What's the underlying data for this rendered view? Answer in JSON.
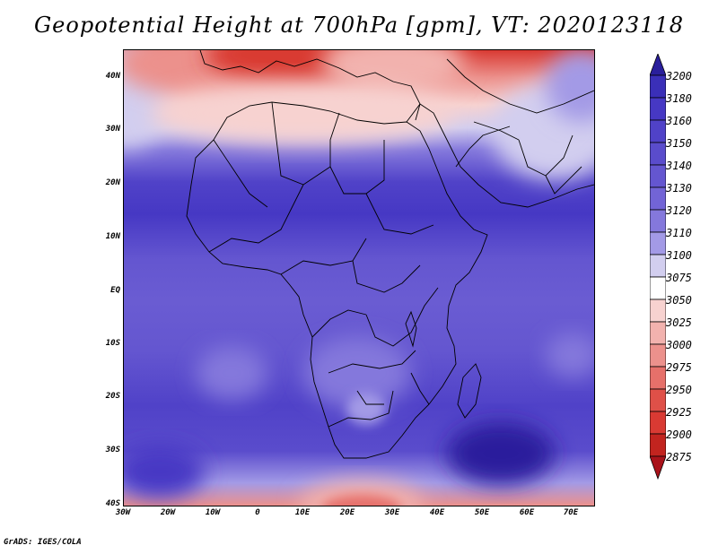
{
  "title": "Geopotential Height at 700hPa [gpm], VT: 2020123118",
  "credit": "GrADS: IGES/COLA",
  "lat_ticks": [
    "40N",
    "30N",
    "20N",
    "10N",
    "EQ",
    "10S",
    "20S",
    "30S",
    "40S"
  ],
  "lon_ticks": [
    "30W",
    "20W",
    "10W",
    "0",
    "10E",
    "20E",
    "30E",
    "40E",
    "50E",
    "60E",
    "70E"
  ],
  "colorbar": {
    "levels": [
      "3200",
      "3180",
      "3160",
      "3150",
      "3140",
      "3130",
      "3120",
      "3110",
      "3100",
      "3075",
      "3050",
      "3025",
      "3000",
      "2975",
      "2950",
      "2925",
      "2900",
      "2875"
    ],
    "colors": [
      "#2a1f9c",
      "#3a2fb8",
      "#4638c4",
      "#5042c8",
      "#5a4ccc",
      "#6456d0",
      "#7264d6",
      "#8478dc",
      "#a39ae6",
      "#d2ceef",
      "#ffffff",
      "#f7d2d0",
      "#f2b2ae",
      "#ec918c",
      "#e6706a",
      "#df5048",
      "#d93a33",
      "#c2241f",
      "#a9121a"
    ]
  }
}
